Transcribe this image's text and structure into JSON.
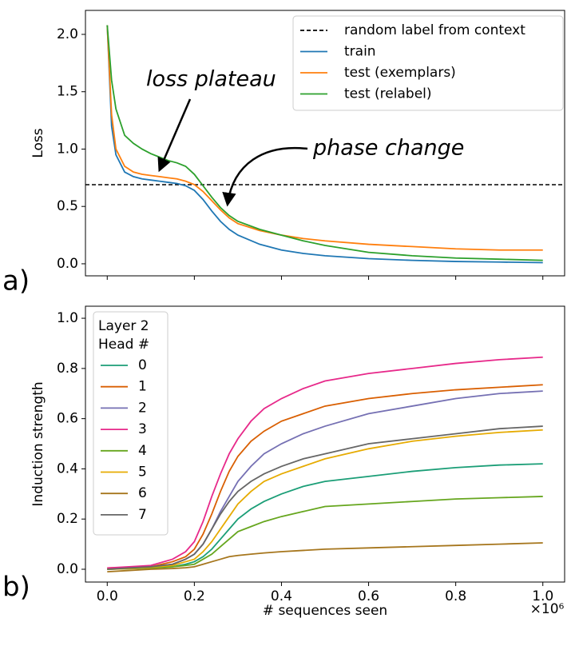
{
  "chart_data": [
    {
      "type": "line",
      "panel_label": "a)",
      "ylabel": "Loss",
      "annotations": [
        "loss plateau",
        "phase change"
      ],
      "x": [
        0,
        0.01,
        0.02,
        0.04,
        0.06,
        0.08,
        0.1,
        0.12,
        0.14,
        0.16,
        0.18,
        0.2,
        0.22,
        0.24,
        0.26,
        0.28,
        0.3,
        0.35,
        0.4,
        0.45,
        0.5,
        0.6,
        0.7,
        0.8,
        0.9,
        1.0
      ],
      "reference_line": {
        "name": "random label from context",
        "value": 0.69,
        "color": "#000000",
        "style": "dashed"
      },
      "series": [
        {
          "name": "train",
          "color": "#1f77b4",
          "values": [
            2.08,
            1.2,
            0.95,
            0.8,
            0.76,
            0.74,
            0.73,
            0.72,
            0.71,
            0.7,
            0.68,
            0.64,
            0.56,
            0.46,
            0.37,
            0.3,
            0.25,
            0.17,
            0.12,
            0.09,
            0.07,
            0.045,
            0.03,
            0.02,
            0.015,
            0.01
          ]
        },
        {
          "name": "test (exemplars)",
          "color": "#ff7f0e",
          "values": [
            2.08,
            1.3,
            1.0,
            0.85,
            0.8,
            0.78,
            0.77,
            0.76,
            0.75,
            0.74,
            0.72,
            0.69,
            0.63,
            0.55,
            0.47,
            0.4,
            0.35,
            0.29,
            0.25,
            0.22,
            0.2,
            0.17,
            0.15,
            0.13,
            0.12,
            0.12
          ]
        },
        {
          "name": "test (relabel)",
          "color": "#2ca02c",
          "values": [
            2.08,
            1.6,
            1.35,
            1.12,
            1.05,
            1.0,
            0.96,
            0.93,
            0.9,
            0.88,
            0.85,
            0.78,
            0.68,
            0.58,
            0.49,
            0.42,
            0.37,
            0.3,
            0.25,
            0.2,
            0.16,
            0.1,
            0.07,
            0.05,
            0.04,
            0.03
          ]
        }
      ],
      "xlim": [
        -0.05,
        1.05
      ],
      "xticks": [
        {
          "value": 0,
          "label": "0.0"
        },
        0.2,
        0.4,
        0.6,
        0.8,
        {
          "value": 1,
          "label": "1.0"
        }
      ],
      "xtick_labels": false,
      "ylim": [
        -0.105,
        2.209
      ],
      "yticks": [
        {
          "value": 0,
          "label": "0.0"
        },
        0.5,
        {
          "value": 1,
          "label": "1.0"
        },
        1.5,
        {
          "value": 2,
          "label": "2.0"
        }
      ],
      "legend": "upper right",
      "grid": false
    },
    {
      "type": "line",
      "panel_label": "b)",
      "ylabel": "Induction strength",
      "xlabel": "# sequences seen",
      "x_offset_label": "×10⁶",
      "legend_title": [
        "Layer 2",
        "Head #"
      ],
      "x": [
        0,
        0.05,
        0.1,
        0.15,
        0.18,
        0.2,
        0.22,
        0.24,
        0.26,
        0.28,
        0.3,
        0.33,
        0.36,
        0.4,
        0.45,
        0.5,
        0.6,
        0.7,
        0.8,
        0.9,
        1.0
      ],
      "series": [
        {
          "name": "0",
          "color": "#1b9e77",
          "values": [
            0,
            0.003,
            0.005,
            0.01,
            0.02,
            0.03,
            0.05,
            0.08,
            0.12,
            0.16,
            0.2,
            0.24,
            0.27,
            0.3,
            0.33,
            0.35,
            0.37,
            0.39,
            0.405,
            0.415,
            0.42
          ]
        },
        {
          "name": "1",
          "color": "#d95f02",
          "values": [
            0.005,
            0.008,
            0.01,
            0.03,
            0.05,
            0.08,
            0.14,
            0.22,
            0.31,
            0.39,
            0.45,
            0.51,
            0.55,
            0.59,
            0.62,
            0.65,
            0.68,
            0.7,
            0.715,
            0.725,
            0.735
          ]
        },
        {
          "name": "2",
          "color": "#7570b3",
          "values": [
            0,
            0.005,
            0.01,
            0.02,
            0.04,
            0.06,
            0.1,
            0.16,
            0.23,
            0.29,
            0.35,
            0.41,
            0.46,
            0.5,
            0.54,
            0.57,
            0.62,
            0.65,
            0.68,
            0.7,
            0.71
          ]
        },
        {
          "name": "3",
          "color": "#e7298a",
          "values": [
            0.005,
            0.01,
            0.015,
            0.04,
            0.07,
            0.11,
            0.19,
            0.29,
            0.38,
            0.46,
            0.52,
            0.59,
            0.64,
            0.68,
            0.72,
            0.75,
            0.78,
            0.8,
            0.82,
            0.835,
            0.845
          ]
        },
        {
          "name": "4",
          "color": "#66a61e",
          "values": [
            0,
            0.002,
            0.005,
            0.01,
            0.015,
            0.02,
            0.04,
            0.06,
            0.09,
            0.12,
            0.15,
            0.17,
            0.19,
            0.21,
            0.23,
            0.25,
            0.26,
            0.27,
            0.28,
            0.285,
            0.29
          ]
        },
        {
          "name": "5",
          "color": "#e6ab02",
          "values": [
            0,
            0.003,
            0.008,
            0.015,
            0.03,
            0.04,
            0.07,
            0.11,
            0.16,
            0.21,
            0.26,
            0.31,
            0.35,
            0.38,
            0.41,
            0.44,
            0.48,
            0.51,
            0.53,
            0.545,
            0.555
          ]
        },
        {
          "name": "6",
          "color": "#a6761d",
          "values": [
            -0.01,
            -0.005,
            0,
            0.003,
            0.006,
            0.01,
            0.02,
            0.03,
            0.04,
            0.05,
            0.055,
            0.06,
            0.065,
            0.07,
            0.075,
            0.08,
            0.085,
            0.09,
            0.095,
            0.1,
            0.105
          ]
        },
        {
          "name": "7",
          "color": "#666666",
          "values": [
            0,
            0.005,
            0.01,
            0.02,
            0.04,
            0.06,
            0.1,
            0.16,
            0.22,
            0.27,
            0.31,
            0.35,
            0.38,
            0.41,
            0.44,
            0.46,
            0.5,
            0.52,
            0.54,
            0.56,
            0.57
          ]
        }
      ],
      "xlim": [
        -0.05,
        1.05
      ],
      "xticks": [
        {
          "value": 0,
          "label": "0.0"
        },
        0.2,
        0.4,
        0.6,
        0.8,
        {
          "value": 1,
          "label": "1.0"
        }
      ],
      "xtick_labels": true,
      "ylim": [
        -0.051,
        1.048
      ],
      "yticks": [
        {
          "value": 0,
          "label": "0.0"
        },
        0.2,
        0.4,
        0.6,
        0.8,
        {
          "value": 1,
          "label": "1.0"
        }
      ],
      "legend": "upper left",
      "grid": false
    }
  ]
}
